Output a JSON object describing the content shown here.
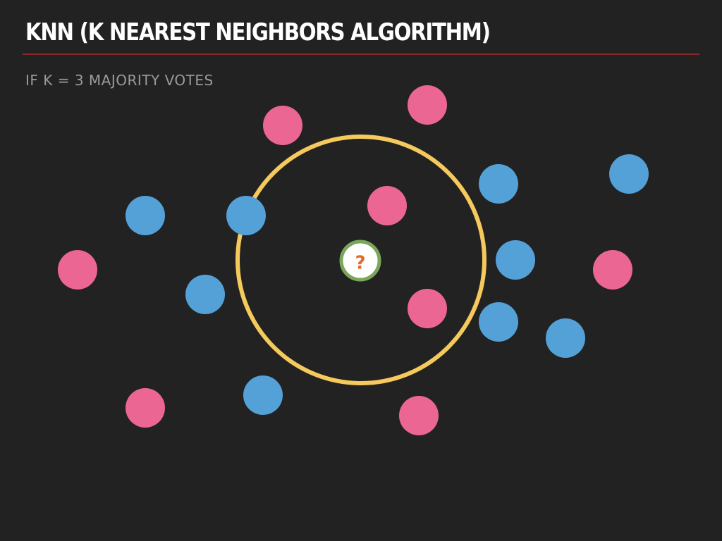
{
  "slide": {
    "title": "KNN (K NEAREST NEIGHBORS ALGORITHM)",
    "subtitle": "IF K = 3 MAJORITY VOTES"
  },
  "colors": {
    "background": "#222222",
    "title": "#ffffff",
    "rule": "#8b2a2a",
    "subtitle": "#9a9a9a",
    "class_a": "#ec6694",
    "class_b": "#54a1d8",
    "neighborhood_circle": "#f5c95c",
    "query_fill": "#ffffff",
    "query_border": "#7aa75a",
    "query_label": "#e36a33"
  },
  "diagram": {
    "query_point": {
      "label": "?"
    },
    "points": [
      {
        "class": "class_a"
      },
      {
        "class": "class_a"
      },
      {
        "class": "class_a"
      },
      {
        "class": "class_a"
      },
      {
        "class": "class_a"
      },
      {
        "class": "class_a"
      },
      {
        "class": "class_a"
      },
      {
        "class": "class_a"
      },
      {
        "class": "class_b"
      },
      {
        "class": "class_b"
      },
      {
        "class": "class_b"
      },
      {
        "class": "class_b"
      },
      {
        "class": "class_b"
      },
      {
        "class": "class_b"
      },
      {
        "class": "class_b"
      },
      {
        "class": "class_b"
      },
      {
        "class": "class_b"
      }
    ]
  }
}
